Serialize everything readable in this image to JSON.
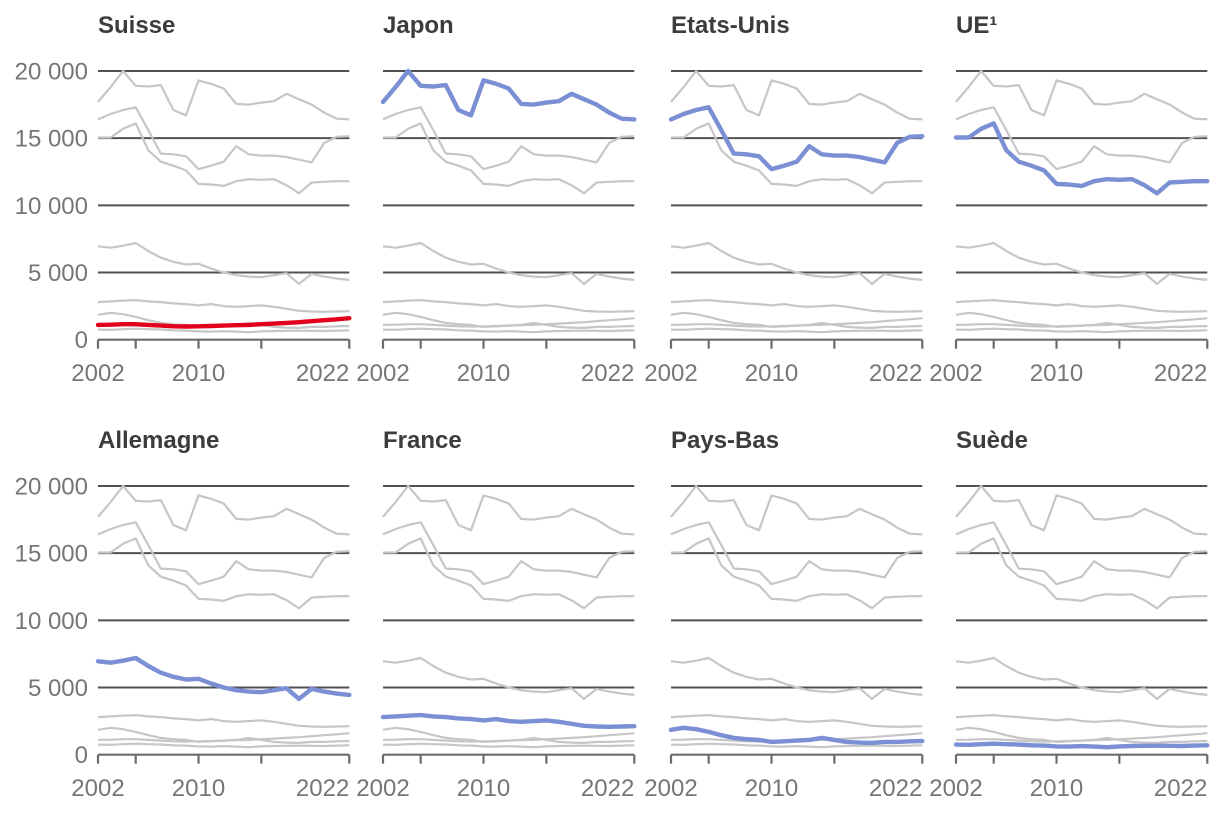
{
  "page": {
    "background": "#ffffff"
  },
  "chart_data": {
    "type": "line",
    "layout": "small-multiples 2x4, same 8 series in every panel, one highlighted per panel",
    "x": [
      2002,
      2003,
      2004,
      2005,
      2006,
      2007,
      2008,
      2009,
      2010,
      2011,
      2012,
      2013,
      2014,
      2015,
      2016,
      2017,
      2018,
      2019,
      2020,
      2021,
      2022
    ],
    "axis": {
      "x_range": [
        2002,
        2022
      ],
      "x_ticks": [
        2002,
        2005,
        2010,
        2015,
        2022
      ],
      "x_tick_labels": [
        "2002",
        "2010",
        "2022"
      ],
      "x_tick_label_years": [
        2002,
        2010,
        2022
      ],
      "y_range": [
        0,
        20000
      ],
      "y_ticks": [
        0,
        5000,
        10000,
        15000,
        20000
      ],
      "y_tick_labels": [
        "0",
        "5 000",
        "10 000",
        "15 000",
        "20 000"
      ],
      "grid": "horizontal dark lines at labeled y values",
      "y_labels_shown_only_on_first_column": true
    },
    "series": [
      {
        "name": "Japon",
        "values": [
          17700,
          18800,
          20000,
          18900,
          18850,
          18950,
          17100,
          16700,
          19300,
          19050,
          18700,
          17550,
          17500,
          17650,
          17750,
          18300,
          17900,
          17500,
          16900,
          16450,
          16400
        ]
      },
      {
        "name": "Etats-Unis",
        "values": [
          16400,
          16800,
          17100,
          17300,
          15600,
          13850,
          13800,
          13650,
          12700,
          12950,
          13250,
          14400,
          13800,
          13700,
          13700,
          13600,
          13400,
          13200,
          14650,
          15100,
          15150
        ]
      },
      {
        "name": "UE",
        "values": [
          15050,
          15050,
          15700,
          16100,
          14100,
          13250,
          12950,
          12600,
          11600,
          11550,
          11450,
          11800,
          11950,
          11900,
          11950,
          11500,
          10900,
          11700,
          11750,
          11800,
          11800
        ]
      },
      {
        "name": "Allemagne",
        "values": [
          6950,
          6850,
          7000,
          7200,
          6600,
          6100,
          5800,
          5600,
          5650,
          5300,
          5000,
          4800,
          4700,
          4650,
          4800,
          4950,
          4150,
          4900,
          4700,
          4550,
          4450
        ]
      },
      {
        "name": "France",
        "values": [
          2800,
          2850,
          2900,
          2950,
          2850,
          2800,
          2700,
          2650,
          2550,
          2650,
          2500,
          2450,
          2500,
          2550,
          2450,
          2300,
          2150,
          2100,
          2080,
          2100,
          2120
        ]
      },
      {
        "name": "Pays-Bas",
        "values": [
          1850,
          2000,
          1900,
          1700,
          1450,
          1250,
          1150,
          1100,
          950,
          1000,
          1050,
          1100,
          1250,
          1100,
          950,
          900,
          880,
          950,
          950,
          1000,
          1020
        ]
      },
      {
        "name": "Suisse",
        "values": [
          1100,
          1120,
          1150,
          1150,
          1100,
          1050,
          1000,
          980,
          1000,
          1020,
          1050,
          1080,
          1100,
          1150,
          1200,
          1250,
          1300,
          1380,
          1450,
          1520,
          1600
        ]
      },
      {
        "name": "Suède",
        "values": [
          750,
          740,
          780,
          820,
          780,
          760,
          700,
          680,
          620,
          600,
          640,
          600,
          560,
          620,
          650,
          660,
          670,
          660,
          650,
          680,
          700
        ]
      }
    ],
    "panels": [
      {
        "title": "Suisse",
        "highlight": "Suisse",
        "color": "#e2001c"
      },
      {
        "title": "Japon",
        "highlight": "Japon",
        "color": "#7b8fd4"
      },
      {
        "title": "Etats-Unis",
        "highlight": "Etats-Unis",
        "color": "#7b8fd4"
      },
      {
        "title": "UE¹",
        "highlight": "UE",
        "color": "#7b8fd4"
      },
      {
        "title": "Allemagne",
        "highlight": "Allemagne",
        "color": "#7b8fd4"
      },
      {
        "title": "France",
        "highlight": "France",
        "color": "#7b8fd4"
      },
      {
        "title": "Pays-Bas",
        "highlight": "Pays-Bas",
        "color": "#7b8fd4"
      },
      {
        "title": "Suède",
        "highlight": "Suède",
        "color": "#7b8fd4"
      }
    ],
    "colors": {
      "highlight_red": "#e2001c",
      "highlight_blue": "#7b8fd4",
      "muted_series": "#c6c6c6",
      "gridline": "#515257",
      "axis": "#6a6b6e",
      "title_text": "#3c3c3c",
      "axis_text": "#767676"
    }
  }
}
